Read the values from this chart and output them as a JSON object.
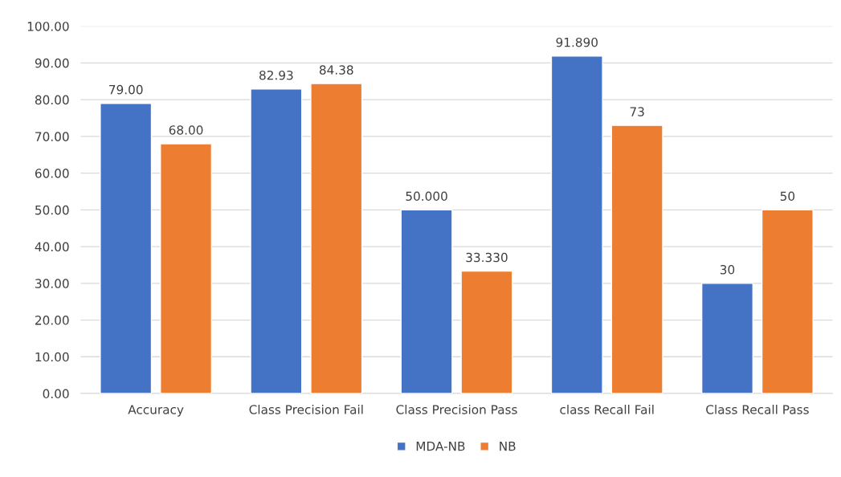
{
  "chart_data": {
    "type": "bar",
    "categories": [
      "Accuracy",
      "Class Precision Fail",
      "Class Precision Pass",
      "class Recall Fail",
      "Class Recall Pass"
    ],
    "series": [
      {
        "name": "MDA-NB",
        "color": "#4472c4",
        "values": [
          79.0,
          82.93,
          50.0,
          91.89,
          30
        ],
        "value_labels": [
          "79.00",
          "82.93",
          "50.000",
          "91.890",
          "30"
        ]
      },
      {
        "name": "NB",
        "color": "#ed7d31",
        "values": [
          68.0,
          84.38,
          33.33,
          73,
          50
        ],
        "value_labels": [
          "68.00",
          "84.38",
          "33.330",
          "73",
          "50"
        ]
      }
    ],
    "ylim": [
      0,
      100
    ],
    "yticks": [
      {
        "value": 0,
        "label": "0.00"
      },
      {
        "value": 10,
        "label": "10.00"
      },
      {
        "value": 20,
        "label": "20.00"
      },
      {
        "value": 30,
        "label": "30.00"
      },
      {
        "value": 40,
        "label": "40.00"
      },
      {
        "value": 50,
        "label": "50.00"
      },
      {
        "value": 60,
        "label": "60.00"
      },
      {
        "value": 70,
        "label": "70.00"
      },
      {
        "value": 80,
        "label": "80.00"
      },
      {
        "value": 90,
        "label": "90.00"
      },
      {
        "value": 100,
        "label": "100.00"
      }
    ],
    "grid": "y",
    "legend": "bottom"
  }
}
